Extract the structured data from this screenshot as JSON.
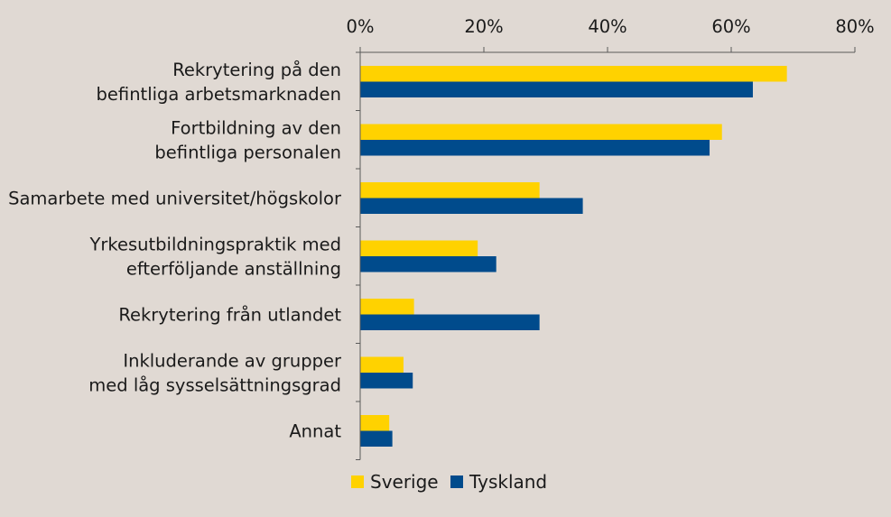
{
  "chart_data": {
    "type": "bar",
    "orientation": "horizontal",
    "categories": [
      [
        "Rekrytering på den",
        "befintliga arbetsmarknaden"
      ],
      [
        "Fortbildning av den",
        "befintliga personalen"
      ],
      [
        "Samarbete med universitet/högskolor"
      ],
      [
        "Yrkesutbildningspraktik med",
        "efterföljande anställning"
      ],
      [
        "Rekrytering från utlandet"
      ],
      [
        "Inkluderande av grupper",
        "med låg sysselsättningsgrad"
      ],
      [
        "Annat"
      ]
    ],
    "series": [
      {
        "name": "Sverige",
        "color": "#ffd200",
        "values": [
          69,
          58.5,
          29,
          19,
          8.7,
          7,
          4.7
        ]
      },
      {
        "name": "Tyskland",
        "color": "#004b8c",
        "values": [
          63.5,
          56.5,
          36,
          22,
          29,
          8.5,
          5.2
        ]
      }
    ],
    "xlim": [
      0,
      80
    ],
    "ticks": [
      0,
      20,
      40,
      60,
      80
    ],
    "tick_labels": [
      "0%",
      "20%",
      "40%",
      "60%",
      "80%"
    ],
    "axis_position": "top",
    "legend_position": "bottom-center",
    "grid": false
  }
}
